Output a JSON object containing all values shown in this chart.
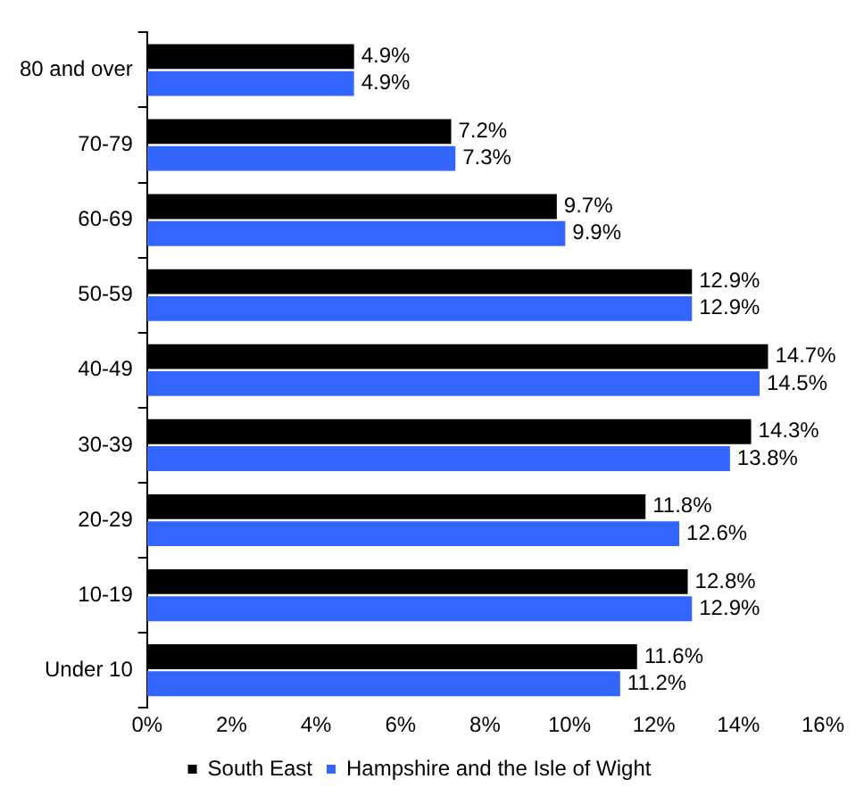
{
  "chart_data": {
    "type": "bar",
    "orientation": "horizontal",
    "categories": [
      "80 and over",
      "70-79",
      "60-69",
      "50-59",
      "40-49",
      "30-39",
      "20-29",
      "10-19",
      "Under 10"
    ],
    "series": [
      {
        "name": "South East",
        "color": "#000000",
        "values": [
          4.9,
          7.2,
          9.7,
          12.9,
          14.7,
          14.3,
          11.8,
          12.8,
          11.6
        ],
        "value_labels": [
          "4.9%",
          "7.2%",
          "9.7%",
          "12.9%",
          "14.7%",
          "14.3%",
          "11.8%",
          "12.8%",
          "11.6%"
        ]
      },
      {
        "name": "Hampshire and the Isle of Wight",
        "color": "#3366ff",
        "values": [
          4.9,
          7.3,
          9.9,
          12.9,
          14.5,
          13.8,
          12.6,
          12.9,
          11.2
        ],
        "value_labels": [
          "4.9%",
          "7.3%",
          "9.9%",
          "12.9%",
          "14.5%",
          "13.8%",
          "12.6%",
          "12.9%",
          "11.2%"
        ]
      }
    ],
    "xlim": [
      0,
      16
    ],
    "xticks": [
      {
        "value": 0,
        "label": "0%"
      },
      {
        "value": 2,
        "label": "2%"
      },
      {
        "value": 4,
        "label": "4%"
      },
      {
        "value": 6,
        "label": "6%"
      },
      {
        "value": 8,
        "label": "8%"
      },
      {
        "value": 10,
        "label": "10%"
      },
      {
        "value": 12,
        "label": "12%"
      },
      {
        "value": 14,
        "label": "14%"
      },
      {
        "value": 16,
        "label": "16%"
      }
    ],
    "grid": false,
    "legend": "bottom"
  }
}
